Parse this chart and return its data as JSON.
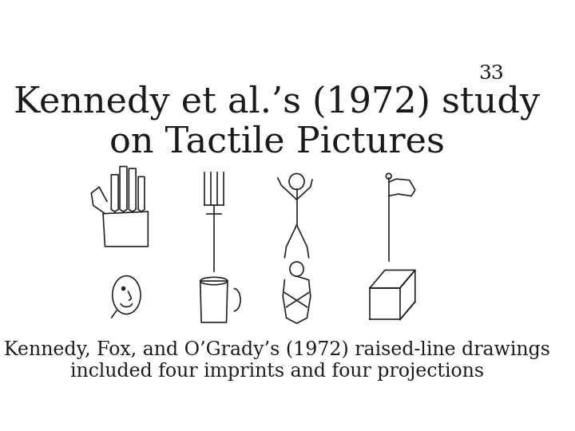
{
  "title_line1": "Kennedy et al.’s (1972) study",
  "title_line2": "on Tactile Pictures",
  "page_number": "33",
  "caption_line1": "Kennedy, Fox, and O’Grady’s (1972) raised-line drawings",
  "caption_line2": "included four imprints and four projections",
  "bg_color": "#ffffff",
  "title_color": "#1a1a1a",
  "caption_color": "#1a1a1a",
  "title_fontsize": 32,
  "page_fontsize": 18,
  "caption_fontsize": 17
}
